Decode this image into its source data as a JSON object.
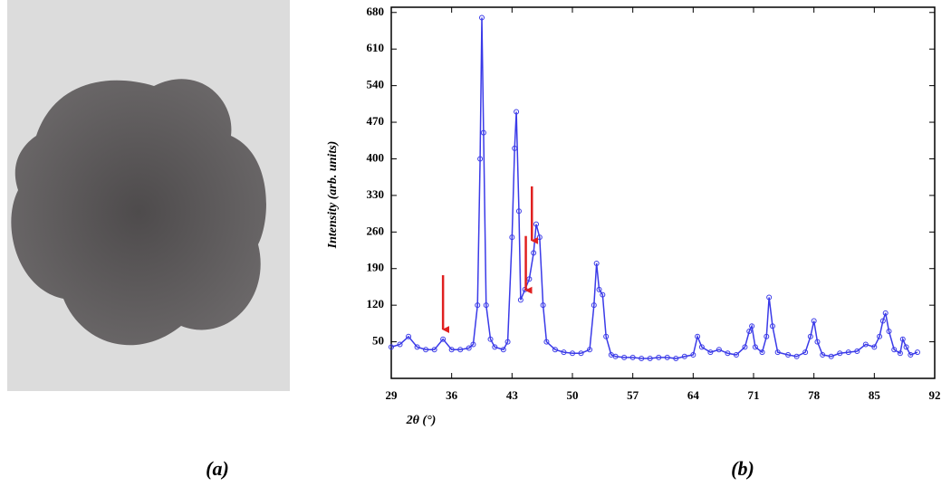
{
  "panels": [
    {
      "label": "(a)"
    },
    {
      "label": "(b)"
    }
  ],
  "chart_data": {
    "type": "line",
    "xlabel": "2θ (°)",
    "ylabel": "Intensity (arb. units)",
    "x": [
      29,
      30,
      31,
      32,
      33,
      34,
      35,
      36,
      37,
      38,
      38.5,
      39,
      39.3,
      39.5,
      39.7,
      40,
      40.5,
      41,
      42,
      42.5,
      43,
      43.3,
      43.5,
      43.8,
      44,
      44.5,
      45,
      45.5,
      45.8,
      46.2,
      46.6,
      47,
      48,
      49,
      50,
      51,
      52,
      52.5,
      52.8,
      53.1,
      53.5,
      53.9,
      54.5,
      55,
      56,
      57,
      58,
      59,
      60,
      61,
      62,
      63,
      64,
      64.5,
      65,
      66,
      67,
      68,
      69,
      70,
      70.5,
      70.8,
      71.2,
      72,
      72.5,
      72.8,
      73.2,
      73.8,
      75,
      76,
      77,
      77.6,
      78,
      78.4,
      79,
      80,
      81,
      82,
      83,
      84,
      85,
      85.6,
      86,
      86.3,
      86.7,
      87.3,
      88,
      88.3,
      88.7,
      89.2,
      90
    ],
    "series": [
      {
        "color": "#3a3ae8",
        "values": [
          40,
          45,
          60,
          40,
          35,
          35,
          55,
          35,
          35,
          38,
          45,
          120,
          400,
          670,
          450,
          120,
          55,
          40,
          35,
          50,
          250,
          420,
          490,
          300,
          130,
          150,
          170,
          220,
          275,
          250,
          120,
          50,
          35,
          30,
          28,
          28,
          35,
          120,
          200,
          150,
          140,
          60,
          25,
          22,
          20,
          20,
          18,
          18,
          20,
          20,
          18,
          22,
          25,
          60,
          40,
          30,
          35,
          28,
          25,
          40,
          70,
          80,
          40,
          30,
          60,
          135,
          80,
          30,
          25,
          22,
          30,
          60,
          90,
          50,
          25,
          22,
          28,
          30,
          32,
          45,
          40,
          60,
          90,
          105,
          70,
          35,
          28,
          55,
          40,
          25,
          30
        ]
      }
    ],
    "xlim": [
      29,
      92
    ],
    "ylim": [
      -20,
      690
    ],
    "xticks": [
      29,
      36,
      43,
      50,
      57,
      64,
      71,
      78,
      85,
      92
    ],
    "yticks": [
      50,
      120,
      190,
      260,
      330,
      400,
      470,
      540,
      610,
      680
    ],
    "arrows": [
      {
        "x": 35,
        "y": 70
      },
      {
        "x": 44.6,
        "y": 145
      },
      {
        "x": 45.3,
        "y": 240
      }
    ],
    "arrow_color": "#e02020"
  }
}
